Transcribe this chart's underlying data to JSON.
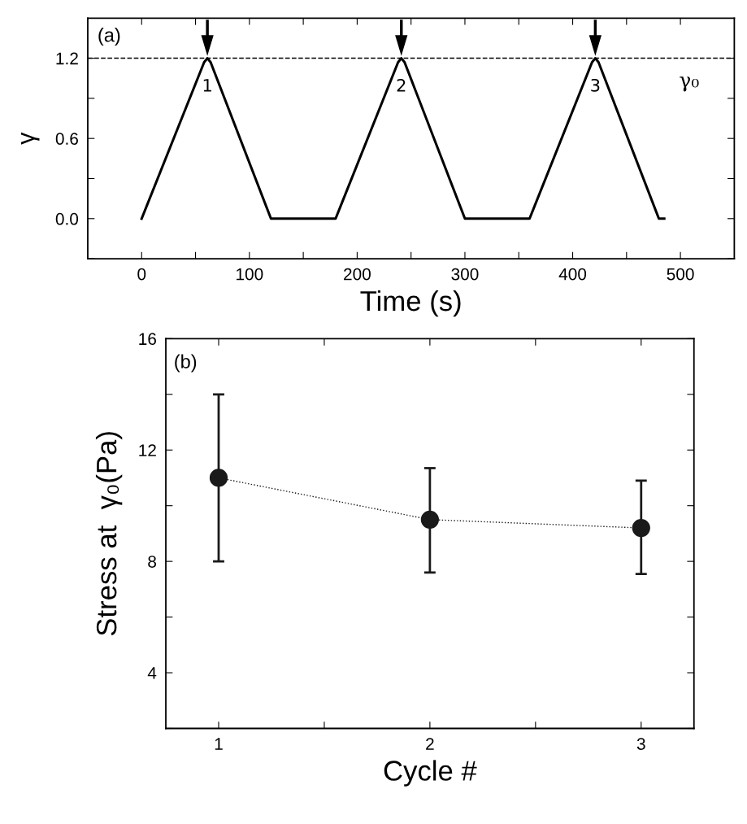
{
  "chart_data": [
    {
      "type": "line",
      "xlabel": "Time (s)",
      "ylabel": "γ",
      "x": [
        0,
        58,
        61,
        64,
        120,
        122,
        178,
        180,
        238,
        241,
        244,
        300,
        302,
        358,
        360,
        418,
        421,
        424,
        480,
        485
      ],
      "series": [
        {
          "color": "#000000",
          "values": [
            0,
            1.17,
            1.2,
            1.17,
            0,
            0,
            0,
            0,
            1.17,
            1.2,
            1.17,
            0,
            0,
            0,
            0,
            1.17,
            1.2,
            1.17,
            0,
            0
          ]
        }
      ],
      "xlim": [
        -50,
        550
      ],
      "ylim": [
        -0.3,
        1.5
      ],
      "xticks": [
        0,
        {
          "value": 50,
          "label": null
        },
        100,
        {
          "value": 150,
          "label": null
        },
        200,
        {
          "value": 250,
          "label": null
        },
        300,
        {
          "value": 350,
          "label": null
        },
        400,
        {
          "value": 450,
          "label": null
        },
        500
      ],
      "yticks": [
        {
          "value": -0.3,
          "label": null
        },
        {
          "value": 0.0,
          "label": "0.0"
        },
        {
          "value": 0.3,
          "label": null
        },
        0.6,
        {
          "value": 0.9,
          "label": null
        },
        1.2
      ],
      "ref_lines": [
        {
          "axis": "y",
          "value": 1.2,
          "label": "γ₀",
          "line_style": "dashed",
          "color": "#000000"
        }
      ],
      "annotations": [
        "(a)",
        {
          "text": "1",
          "x": 61,
          "y": 1.2
        },
        {
          "text": "2",
          "x": 241,
          "y": 1.2
        },
        {
          "text": "3",
          "x": 421,
          "y": 1.2
        }
      ],
      "marker": "none",
      "line_style": "solid",
      "grid": false,
      "legend": false
    },
    {
      "type": "line",
      "xlabel": "Cycle #",
      "ylabel": "Stress at  γ₀(Pa)",
      "x": [
        1,
        2,
        3
      ],
      "series": [
        {
          "color": "#1a1a1a",
          "values": [
            11.0,
            9.5,
            9.2
          ],
          "errors": [
            [
              8.0,
              14.0
            ],
            [
              7.6,
              11.35
            ],
            [
              7.55,
              10.9
            ]
          ]
        }
      ],
      "xlim": [
        0.75,
        3.25
      ],
      "ylim": [
        2,
        16
      ],
      "xticks": [
        1,
        {
          "value": 1.5,
          "label": null
        },
        2,
        {
          "value": 2.5,
          "label": null
        },
        3
      ],
      "yticks": [
        {
          "value": 2,
          "label": null
        },
        4,
        {
          "value": 6,
          "label": null
        },
        8,
        {
          "value": 10,
          "label": null
        },
        12,
        {
          "value": 14,
          "label": null
        },
        16
      ],
      "annotations": [
        "(b)"
      ],
      "marker": "circle",
      "line_style": "dotted",
      "grid": false,
      "legend": false
    }
  ]
}
